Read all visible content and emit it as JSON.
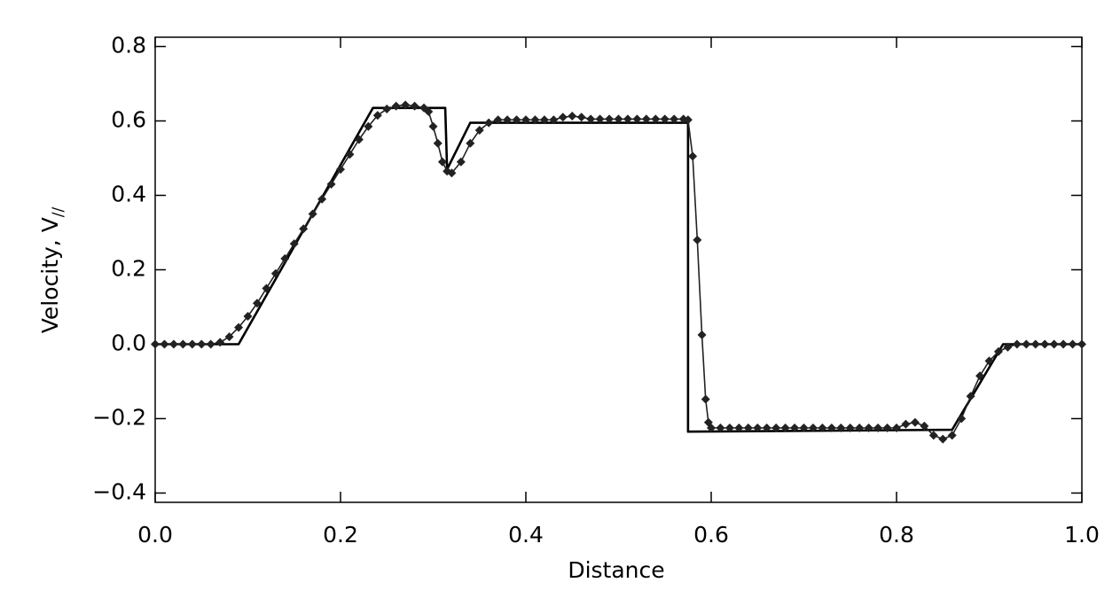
{
  "chart_data": {
    "type": "line",
    "xlabel": "Distance",
    "ylabel": "Velocity, V",
    "ylabel_sub": "//",
    "xlim": [
      0,
      1
    ],
    "ylim": [
      -0.425,
      0.825
    ],
    "xticks": [
      {
        "value": 0,
        "label": "0.0"
      },
      {
        "value": 0.2,
        "label": "0.2"
      },
      {
        "value": 0.4,
        "label": "0.4"
      },
      {
        "value": 0.6,
        "label": "0.6"
      },
      {
        "value": 0.8,
        "label": "0.8"
      },
      {
        "value": 1,
        "label": "1.0"
      }
    ],
    "yticks": [
      {
        "value": -0.4,
        "label": "−0.4"
      },
      {
        "value": -0.2,
        "label": "−0.2"
      },
      {
        "value": 0,
        "label": "0.0"
      },
      {
        "value": 0.2,
        "label": "0.2"
      },
      {
        "value": 0.4,
        "label": "0.4"
      },
      {
        "value": 0.6,
        "label": "0.6"
      },
      {
        "value": 0.8,
        "label": "0.8"
      }
    ],
    "series": [
      {
        "color": "#000000",
        "markers": false,
        "x": [
          0,
          0.09,
          0.235,
          0.313,
          0.315,
          0.34,
          0.575,
          0.575,
          0.86,
          0.915,
          1
        ],
        "values": [
          0,
          0,
          0.635,
          0.635,
          0.47,
          0.595,
          0.595,
          -0.235,
          -0.23,
          0,
          0
        ]
      },
      {
        "color": "#222222",
        "markers": true,
        "x": [
          0,
          0.01,
          0.02,
          0.03,
          0.04,
          0.05,
          0.06,
          0.07,
          0.08,
          0.09,
          0.1,
          0.11,
          0.12,
          0.13,
          0.14,
          0.15,
          0.16,
          0.17,
          0.18,
          0.19,
          0.2,
          0.21,
          0.22,
          0.23,
          0.24,
          0.25,
          0.26,
          0.27,
          0.28,
          0.29,
          0.295,
          0.3,
          0.305,
          0.31,
          0.315,
          0.32,
          0.33,
          0.34,
          0.35,
          0.36,
          0.37,
          0.38,
          0.39,
          0.4,
          0.41,
          0.42,
          0.43,
          0.44,
          0.45,
          0.46,
          0.47,
          0.48,
          0.49,
          0.5,
          0.51,
          0.52,
          0.53,
          0.54,
          0.55,
          0.56,
          0.57,
          0.575,
          0.58,
          0.585,
          0.59,
          0.594,
          0.597,
          0.6,
          0.61,
          0.62,
          0.63,
          0.64,
          0.65,
          0.66,
          0.67,
          0.68,
          0.69,
          0.7,
          0.71,
          0.72,
          0.73,
          0.74,
          0.75,
          0.76,
          0.77,
          0.78,
          0.79,
          0.8,
          0.81,
          0.82,
          0.83,
          0.84,
          0.85,
          0.86,
          0.87,
          0.88,
          0.89,
          0.9,
          0.91,
          0.92,
          0.93,
          0.94,
          0.95,
          0.96,
          0.97,
          0.98,
          0.99,
          1
        ],
        "values": [
          0,
          0,
          0,
          0,
          0,
          0,
          0,
          0.005,
          0.02,
          0.045,
          0.075,
          0.11,
          0.15,
          0.19,
          0.23,
          0.27,
          0.31,
          0.35,
          0.39,
          0.43,
          0.47,
          0.51,
          0.55,
          0.585,
          0.615,
          0.632,
          0.64,
          0.643,
          0.64,
          0.635,
          0.625,
          0.585,
          0.54,
          0.49,
          0.465,
          0.46,
          0.49,
          0.54,
          0.575,
          0.595,
          0.603,
          0.603,
          0.603,
          0.603,
          0.603,
          0.603,
          0.603,
          0.61,
          0.613,
          0.61,
          0.605,
          0.605,
          0.605,
          0.605,
          0.605,
          0.605,
          0.605,
          0.605,
          0.605,
          0.605,
          0.605,
          0.603,
          0.505,
          0.28,
          0.025,
          -0.148,
          -0.21,
          -0.225,
          -0.225,
          -0.225,
          -0.225,
          -0.225,
          -0.225,
          -0.225,
          -0.225,
          -0.225,
          -0.225,
          -0.225,
          -0.225,
          -0.225,
          -0.225,
          -0.225,
          -0.225,
          -0.225,
          -0.225,
          -0.225,
          -0.225,
          -0.225,
          -0.215,
          -0.21,
          -0.22,
          -0.245,
          -0.255,
          -0.245,
          -0.2,
          -0.14,
          -0.085,
          -0.045,
          -0.02,
          -0.008,
          0,
          0,
          0,
          0,
          0,
          0,
          0,
          0
        ]
      }
    ]
  }
}
